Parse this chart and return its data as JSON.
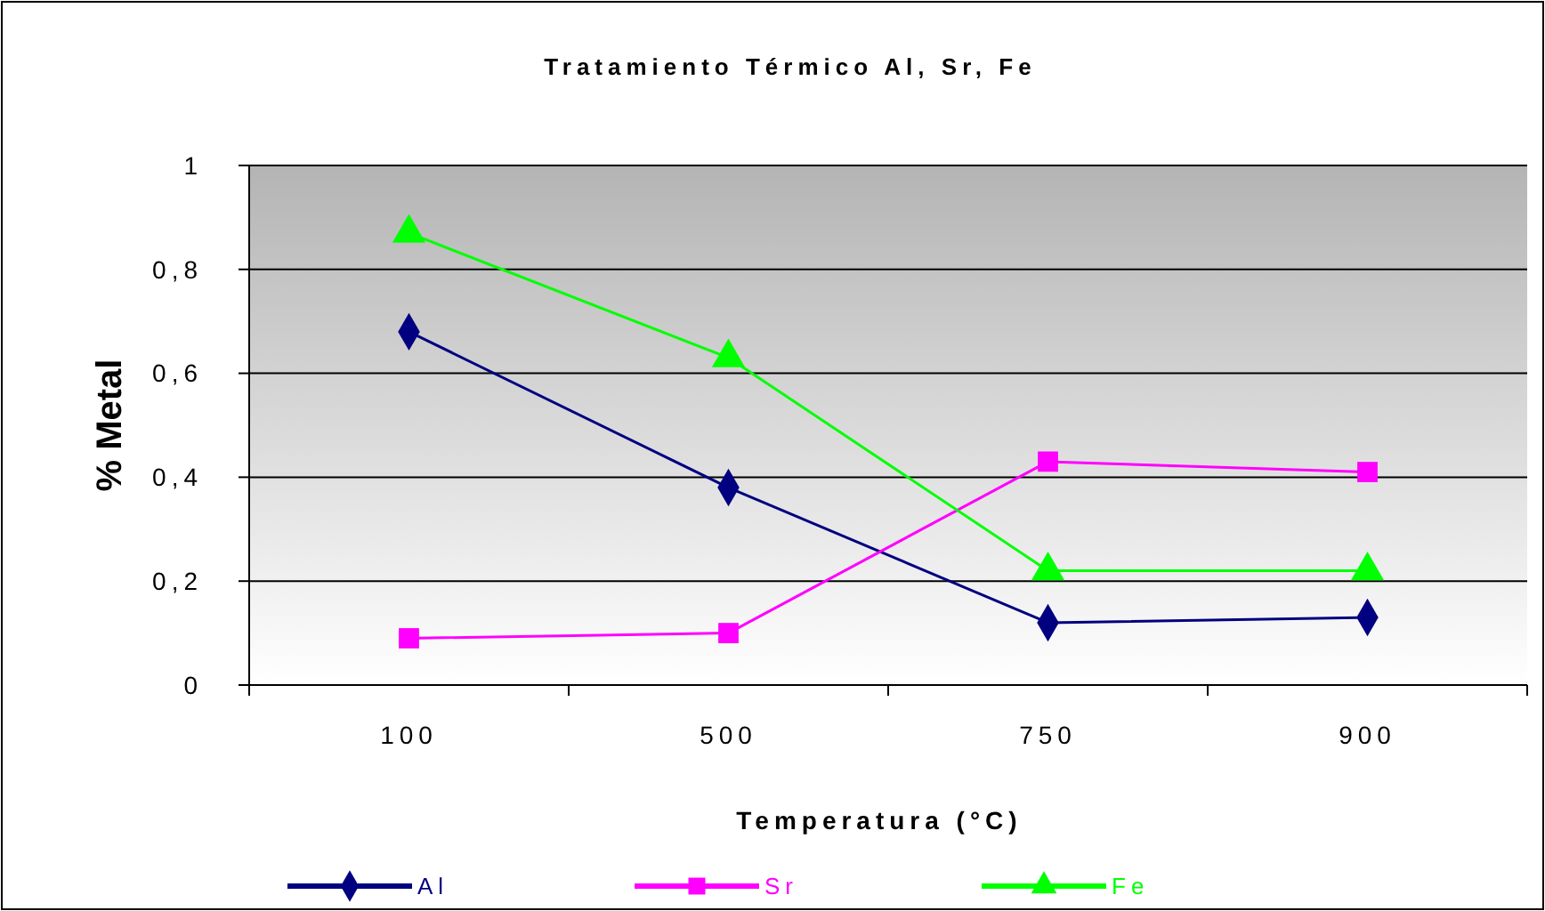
{
  "chart_data": {
    "type": "line",
    "title": "Tratamiento Térmico Al, Sr, Fe",
    "xlabel": "Temperatura (°C)",
    "ylabel": "% Metal",
    "categories": [
      "100",
      "500",
      "750",
      "900"
    ],
    "series": [
      {
        "name": "Al",
        "color": "#000080",
        "marker": "diamond",
        "values": [
          0.68,
          0.38,
          0.12,
          0.13
        ]
      },
      {
        "name": "Sr",
        "color": "#ff00ff",
        "marker": "square",
        "values": [
          0.09,
          0.1,
          0.43,
          0.41
        ]
      },
      {
        "name": "Fe",
        "color": "#00ff00",
        "marker": "triangle",
        "values": [
          0.87,
          0.63,
          0.22,
          0.22
        ]
      }
    ],
    "ylim": [
      0,
      1
    ],
    "yticks": [
      {
        "value": 0,
        "label": "0"
      },
      {
        "value": 0.2,
        "label": "0,2"
      },
      {
        "value": 0.4,
        "label": "0,4"
      },
      {
        "value": 0.6,
        "label": "0,6"
      },
      {
        "value": 0.8,
        "label": "0,8"
      },
      {
        "value": 1,
        "label": "1"
      }
    ],
    "grid": "y",
    "legend": "bottom"
  }
}
